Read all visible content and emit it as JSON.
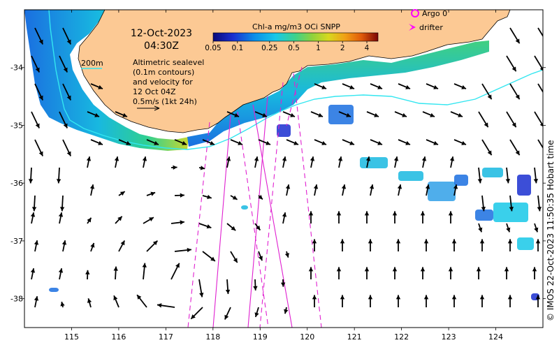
{
  "header": {
    "date": "12-Oct-2023",
    "time": "04:30Z"
  },
  "colorbar": {
    "title": "Chl-a mg/m3 OCi SNPP",
    "ticks": [
      "0.05",
      "0.1",
      "0.25",
      "0.5",
      "1",
      "2",
      "4"
    ],
    "colors": [
      "#0a0a7a",
      "#1a2fd0",
      "#0a8ee8",
      "#18c8e8",
      "#3fd28a",
      "#8ed23c",
      "#d8d81e",
      "#f0a014",
      "#e05a0a",
      "#b01010",
      "#7a0505"
    ]
  },
  "legend": {
    "argo_label": "Argo 0",
    "drifter_label": "drifter",
    "argo_color": "#ff00ff",
    "drifter_color": "#ff00ff"
  },
  "contour_label": "200m",
  "annotation": {
    "lines": [
      "Altimetric sealevel",
      "(0.1m contours)",
      "and velocity for",
      "12 Oct 04Z",
      "0.5m/s (1kt 24h)"
    ]
  },
  "axes": {
    "lon_ticks": [
      115,
      116,
      117,
      118,
      119,
      120,
      121,
      122,
      123,
      124
    ],
    "lat_ticks": [
      -34,
      -35,
      -36,
      -37,
      -38
    ],
    "lat_tick_labels": [
      "-34",
      "-35",
      "-36",
      "-37",
      "-38"
    ]
  },
  "credit": "© IMOS 22-Oct-2023 11:50:35 Hobart time",
  "map_colors": {
    "land": "#fcc994",
    "contour": "#33e6f0",
    "track": "#e020d0",
    "arrow": "#000000"
  }
}
